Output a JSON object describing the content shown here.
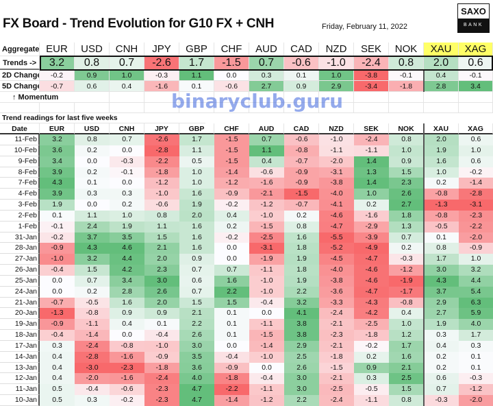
{
  "title": "FX Board - Trend Evolution for G10 FX + CNH",
  "date": "Friday, February 11, 2022",
  "logo": {
    "top": "SAXO",
    "bottom": "BANK"
  },
  "aggregate_label": "Aggregate",
  "trends_label": "Trends ->",
  "change2d_label": "2D Change",
  "change5d_label": "5D Change",
  "momentum_label": "↑ Momentum",
  "section_label": "Trend readings for last five weeks",
  "date_header": "Date",
  "currencies": [
    "EUR",
    "USD",
    "CNH",
    "JPY",
    "GBP",
    "CHF",
    "AUD",
    "CAD",
    "NZD",
    "SEK",
    "NOK",
    "XAU",
    "XAG"
  ],
  "trends": [
    "3.2",
    "0.8",
    "0.7",
    "-2.6",
    "1.7",
    "-1.5",
    "0.7",
    "-0.6",
    "-1.0",
    "-2.4",
    "0.8",
    "2.0",
    "0.6"
  ],
  "change2d": [
    "-0.2",
    "0.9",
    "1.0",
    "-0.3",
    "1.1",
    "0.0",
    "0.3",
    "0.1",
    "1.0",
    "-3.8",
    "-0.1",
    "0.4",
    "-0.1"
  ],
  "change5d": [
    "-0.7",
    "0.6",
    "0.4",
    "-1.6",
    "0.1",
    "-0.6",
    "2.7",
    "0.9",
    "2.9",
    "-3.4",
    "-1.8",
    "2.8",
    "3.4"
  ],
  "rows": [
    {
      "date": "11-Feb",
      "v": [
        "3.2",
        "0.8",
        "0.7",
        "-2.6",
        "1.7",
        "-1.5",
        "0.7",
        "-0.6",
        "-1.0",
        "-2.4",
        "0.8",
        "2.0",
        "0.6"
      ]
    },
    {
      "date": "10-Feb",
      "v": [
        "3.6",
        "0.2",
        "0.0",
        "-2.8",
        "1.1",
        "-1.5",
        "1.1",
        "-0.8",
        "-1.1",
        "-1.1",
        "1.0",
        "1.9",
        "1.0"
      ]
    },
    {
      "date": "9-Feb",
      "v": [
        "3.4",
        "0.0",
        "-0.3",
        "-2.2",
        "0.5",
        "-1.5",
        "0.4",
        "-0.7",
        "-2.0",
        "1.4",
        "0.9",
        "1.6",
        "0.6"
      ]
    },
    {
      "date": "8-Feb",
      "v": [
        "3.9",
        "0.2",
        "-0.1",
        "-1.8",
        "1.0",
        "-1.4",
        "-0.6",
        "-0.9",
        "-3.1",
        "1.3",
        "1.5",
        "1.0",
        "-0.2"
      ]
    },
    {
      "date": "7-Feb",
      "v": [
        "4.3",
        "0.1",
        "0.0",
        "-1.2",
        "1.0",
        "-1.2",
        "-1.6",
        "-0.9",
        "-3.8",
        "1.4",
        "2.3",
        "0.2",
        "-1.4"
      ]
    },
    {
      "date": "4-Feb",
      "v": [
        "3.9",
        "0.3",
        "0.3",
        "-1.0",
        "1.6",
        "-0.9",
        "-2.1",
        "-1.5",
        "-4.0",
        "1.0",
        "2.6",
        "-0.8",
        "-2.8"
      ]
    },
    {
      "date": "3-Feb",
      "v": [
        "1.9",
        "0.0",
        "0.2",
        "-0.6",
        "1.9",
        "-0.2",
        "-1.2",
        "-0.7",
        "-4.1",
        "0.2",
        "2.7",
        "-1.3",
        "-3.1"
      ]
    },
    {
      "date": "2-Feb",
      "v": [
        "0.1",
        "1.1",
        "1.0",
        "0.8",
        "2.0",
        "0.4",
        "-1.0",
        "0.2",
        "-4.6",
        "-1.6",
        "1.8",
        "-0.8",
        "-2.3"
      ]
    },
    {
      "date": "1-Feb",
      "v": [
        "-0.1",
        "2.4",
        "1.9",
        "1.1",
        "1.6",
        "0.2",
        "-1.5",
        "0.8",
        "-4.7",
        "-2.9",
        "1.3",
        "-0.5",
        "-2.2"
      ]
    },
    {
      "date": "31-Jan",
      "v": [
        "-0.2",
        "3.7",
        "3.5",
        "1.5",
        "1.6",
        "-0.2",
        "-2.5",
        "1.6",
        "-5.5",
        "-3.9",
        "0.7",
        "0.1",
        "-2.0"
      ]
    },
    {
      "date": "28-Jan",
      "v": [
        "-0.9",
        "4.3",
        "4.6",
        "2.1",
        "1.6",
        "0.0",
        "-3.1",
        "1.8",
        "-5.2",
        "-4.9",
        "0.2",
        "0.8",
        "-0.9"
      ]
    },
    {
      "date": "27-Jan",
      "v": [
        "-1.0",
        "3.2",
        "4.4",
        "2.0",
        "0.9",
        "0.0",
        "-1.9",
        "1.9",
        "-4.5",
        "-4.7",
        "-0.3",
        "1.7",
        "1.0"
      ]
    },
    {
      "date": "26-Jan",
      "v": [
        "-0.4",
        "1.5",
        "4.2",
        "2.3",
        "0.7",
        "0.7",
        "-1.1",
        "1.8",
        "-4.0",
        "-4.6",
        "-1.2",
        "3.0",
        "3.2"
      ]
    },
    {
      "date": "25-Jan",
      "v": [
        "0.0",
        "0.7",
        "3.4",
        "3.0",
        "0.6",
        "1.6",
        "-1.0",
        "1.9",
        "-3.8",
        "-4.6",
        "-1.9",
        "4.3",
        "4.4"
      ]
    },
    {
      "date": "24-Jan",
      "v": [
        "0.0",
        "0.2",
        "2.8",
        "2.6",
        "0.7",
        "2.2",
        "-1.0",
        "2.2",
        "-3.6",
        "-4.7",
        "-1.7",
        "3.7",
        "5.4"
      ]
    },
    {
      "date": "21-Jan",
      "v": [
        "-0.7",
        "-0.5",
        "1.6",
        "2.0",
        "1.5",
        "1.5",
        "-0.4",
        "3.2",
        "-3.3",
        "-4.3",
        "-0.8",
        "2.9",
        "6.3"
      ]
    },
    {
      "date": "20-Jan",
      "v": [
        "-1.3",
        "-0.8",
        "0.9",
        "0.9",
        "2.1",
        "0.1",
        "0.0",
        "4.1",
        "-2.4",
        "-4.2",
        "0.4",
        "2.7",
        "5.9"
      ]
    },
    {
      "date": "19-Jan",
      "v": [
        "-0.9",
        "-1.1",
        "0.4",
        "0.1",
        "2.2",
        "0.1",
        "-1.1",
        "3.8",
        "-2.1",
        "-2.5",
        "1.0",
        "1.9",
        "4.0"
      ]
    },
    {
      "date": "18-Jan",
      "v": [
        "-0.4",
        "-1.4",
        "0.0",
        "-0.4",
        "2.6",
        "0.1",
        "-1.5",
        "3.8",
        "-2.3",
        "-1.8",
        "1.2",
        "0.3",
        "1.7"
      ]
    },
    {
      "date": "17-Jan",
      "v": [
        "0.3",
        "-2.4",
        "-0.8",
        "-1.0",
        "3.0",
        "0.0",
        "-1.4",
        "2.9",
        "-2.1",
        "-0.2",
        "1.7",
        "0.4",
        "0.3"
      ]
    },
    {
      "date": "14-Jan",
      "v": [
        "0.4",
        "-2.8",
        "-1.6",
        "-0.9",
        "3.5",
        "-0.4",
        "-1.0",
        "2.5",
        "-1.8",
        "0.2",
        "1.6",
        "0.2",
        "0.1"
      ]
    },
    {
      "date": "13-Jan",
      "v": [
        "0.4",
        "-3.0",
        "-2.3",
        "-1.8",
        "3.6",
        "-0.9",
        "0.0",
        "2.6",
        "-1.5",
        "0.9",
        "2.1",
        "0.2",
        "0.1"
      ]
    },
    {
      "date": "12-Jan",
      "v": [
        "0.4",
        "-2.0",
        "-1.6",
        "-2.4",
        "4.0",
        "-1.8",
        "-0.4",
        "3.0",
        "-2.1",
        "0.3",
        "2.5",
        "0.6",
        "-0.3"
      ]
    },
    {
      "date": "11-Jan",
      "v": [
        "0.5",
        "-0.4",
        "-0.6",
        "-2.3",
        "4.7",
        "-2.2",
        "-1.1",
        "3.0",
        "-2.5",
        "-0.5",
        "1.5",
        "0.7",
        "-1.2"
      ]
    },
    {
      "date": "10-Jan",
      "v": [
        "0.5",
        "0.3",
        "-0.2",
        "-2.3",
        "4.7",
        "-1.4",
        "-1.2",
        "2.2",
        "-2.4",
        "-1.1",
        "0.8",
        "-0.3",
        "-2.0"
      ]
    }
  ],
  "colors": {
    "green": "#63be7b",
    "red": "#f8696b",
    "neutral": "#fcfcff",
    "metals_header": "#ffff66",
    "border": "#111111"
  },
  "watermark": "binaryclub.guru"
}
